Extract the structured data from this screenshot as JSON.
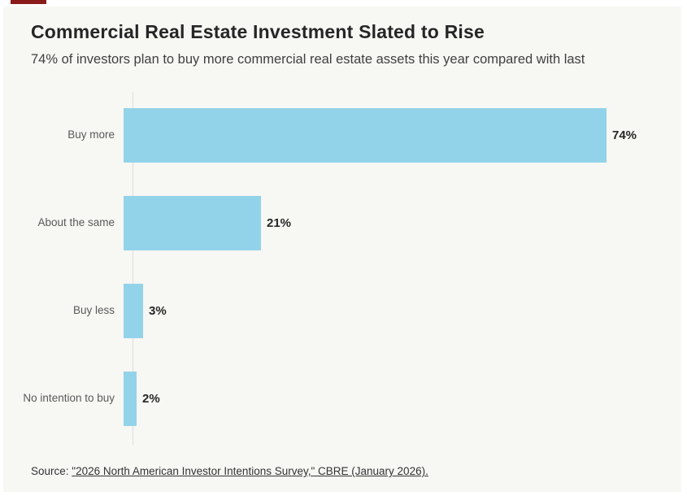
{
  "branding": {
    "accent_color": "#8b1b1b"
  },
  "colors": {
    "page_background": "#ffffff",
    "card_background": "#f7f7f4",
    "bar_color": "#93d3e9",
    "axis_line_color": "#dddddb",
    "title_color": "#262626",
    "subtitle_color": "#404040",
    "category_label_color": "#595959",
    "value_label_color": "#262626",
    "source_text_color": "#333333"
  },
  "chart_data": {
    "type": "bar",
    "orientation": "horizontal",
    "title": "Commercial Real Estate Investment Slated to Rise",
    "subtitle": "74% of investors plan to buy more commercial real estate assets this year compared with last",
    "categories": [
      "Buy more",
      "About the same",
      "Buy less",
      "No intention to buy"
    ],
    "values": [
      74,
      21,
      3,
      2
    ],
    "value_labels": [
      "74%",
      "21%",
      "3%",
      "2%"
    ],
    "xlabel": "",
    "ylabel": "",
    "xlim": [
      0,
      85
    ],
    "grid": false,
    "legend": "none",
    "value_labels_position": "end-of-bar"
  },
  "source": {
    "prefix": "Source: ",
    "link_text": "\"2026 North American Investor Intentions Survey,\" CBRE (January 2026)."
  }
}
